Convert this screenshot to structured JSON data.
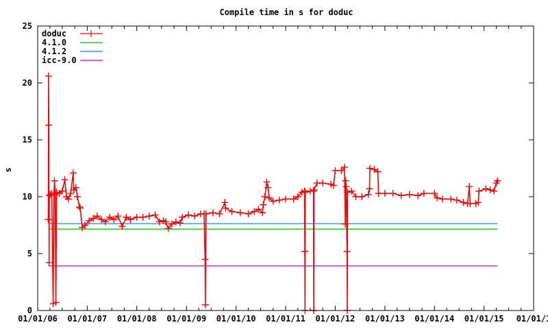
{
  "chart_data": {
    "type": "line",
    "title": "Compile time in s for doduc",
    "xlabel": "",
    "ylabel": "s",
    "xlim": [
      "2006-01-01",
      "2016-01-01"
    ],
    "ylim": [
      0,
      25
    ],
    "x_ticks": [
      "01/01/06",
      "01/01/07",
      "01/01/08",
      "01/01/09",
      "01/01/10",
      "01/01/11",
      "01/01/12",
      "01/01/13",
      "01/01/14",
      "01/01/15",
      "01/01/1"
    ],
    "y_ticks": [
      "0",
      "5",
      "10",
      "15",
      "20",
      "25"
    ],
    "grid": false,
    "legend_placement": "top-left",
    "series": [
      {
        "name": "doduc",
        "color": "#ff0000",
        "style": "linespoints",
        "marker": "plus",
        "points": [
          [
            "2006-03-20",
            8.0
          ],
          [
            "2006-03-22",
            20.6
          ],
          [
            "2006-03-24",
            16.3
          ],
          [
            "2006-03-26",
            4.2
          ],
          [
            "2006-03-28",
            10.1
          ],
          [
            "2006-04-05",
            10.2
          ],
          [
            "2006-04-15",
            10.3
          ],
          [
            "2006-04-25",
            0.6
          ],
          [
            "2006-05-01",
            10.3
          ],
          [
            "2006-05-05",
            11.4
          ],
          [
            "2006-05-10",
            10.2
          ],
          [
            "2006-05-15",
            0.7
          ],
          [
            "2006-05-20",
            10.4
          ],
          [
            "2006-06-10",
            10.3
          ],
          [
            "2006-07-01",
            10.5
          ],
          [
            "2006-07-20",
            11.5
          ],
          [
            "2006-08-01",
            10.0
          ],
          [
            "2006-08-15",
            9.8
          ],
          [
            "2006-09-01",
            10.3
          ],
          [
            "2006-09-20",
            12.1
          ],
          [
            "2006-09-25",
            10.6
          ],
          [
            "2006-10-10",
            10.8
          ],
          [
            "2006-10-20",
            10.0
          ],
          [
            "2006-11-05",
            9.1
          ],
          [
            "2006-11-10",
            9.0
          ],
          [
            "2006-11-25",
            7.3
          ],
          [
            "2006-12-15",
            7.5
          ],
          [
            "2007-01-15",
            7.9
          ],
          [
            "2007-02-15",
            8.1
          ],
          [
            "2007-03-15",
            8.3
          ],
          [
            "2007-04-15",
            8.0
          ],
          [
            "2007-05-15",
            7.8
          ],
          [
            "2007-06-15",
            8.2
          ],
          [
            "2007-07-15",
            8.0
          ],
          [
            "2007-08-15",
            8.3
          ],
          [
            "2007-09-15",
            7.4
          ],
          [
            "2007-10-15",
            8.2
          ],
          [
            "2007-11-15",
            8.0
          ],
          [
            "2008-01-01",
            8.2
          ],
          [
            "2008-02-15",
            8.2
          ],
          [
            "2008-04-01",
            8.3
          ],
          [
            "2008-05-15",
            8.4
          ],
          [
            "2008-06-15",
            7.8
          ],
          [
            "2008-07-15",
            7.9
          ],
          [
            "2008-08-01",
            7.8
          ],
          [
            "2008-08-20",
            7.2
          ],
          [
            "2008-09-15",
            7.6
          ],
          [
            "2008-10-15",
            7.8
          ],
          [
            "2008-11-15",
            7.7
          ],
          [
            "2008-12-01",
            8.2
          ],
          [
            "2009-01-15",
            8.4
          ],
          [
            "2009-03-01",
            8.3
          ],
          [
            "2009-04-15",
            8.5
          ],
          [
            "2009-05-10",
            8.5
          ],
          [
            "2009-05-18",
            4.5
          ],
          [
            "2009-05-20",
            0.5
          ],
          [
            "2009-05-25",
            8.5
          ],
          [
            "2009-07-15",
            8.6
          ],
          [
            "2009-09-01",
            8.5
          ],
          [
            "2009-10-10",
            9.5
          ],
          [
            "2009-10-15",
            9.0
          ],
          [
            "2009-12-01",
            8.7
          ],
          [
            "2010-02-01",
            8.6
          ],
          [
            "2010-04-01",
            8.5
          ],
          [
            "2010-05-15",
            8.7
          ],
          [
            "2010-06-15",
            8.9
          ],
          [
            "2010-07-15",
            8.6
          ],
          [
            "2010-07-20",
            9.3
          ],
          [
            "2010-08-01",
            10.0
          ],
          [
            "2010-08-15",
            11.3
          ],
          [
            "2010-08-25",
            10.8
          ],
          [
            "2010-09-01",
            9.9
          ],
          [
            "2010-10-01",
            9.6
          ],
          [
            "2010-11-15",
            9.7
          ],
          [
            "2011-01-01",
            9.8
          ],
          [
            "2011-03-01",
            9.8
          ],
          [
            "2011-04-01",
            10.0
          ],
          [
            "2011-05-01",
            10.4
          ],
          [
            "2011-05-20",
            10.5
          ],
          [
            "2011-05-22",
            5.2
          ],
          [
            "2011-05-24",
            0.0
          ],
          [
            "2011-05-26",
            10.4
          ],
          [
            "2011-07-01",
            10.5
          ],
          [
            "2011-07-25",
            10.5
          ],
          [
            "2011-07-27",
            0.0
          ],
          [
            "2011-07-29",
            10.6
          ],
          [
            "2011-08-20",
            11.2
          ],
          [
            "2011-10-01",
            11.2
          ],
          [
            "2011-12-01",
            11.1
          ],
          [
            "2011-12-20",
            11.0
          ],
          [
            "2012-01-01",
            12.3
          ],
          [
            "2012-02-15",
            12.3
          ],
          [
            "2012-03-10",
            12.6
          ],
          [
            "2012-03-15",
            7.6
          ],
          [
            "2012-03-18",
            11.4
          ],
          [
            "2012-03-22",
            10.9
          ],
          [
            "2012-03-28",
            5.2
          ],
          [
            "2012-03-30",
            0.0
          ],
          [
            "2012-04-01",
            10.4
          ],
          [
            "2012-05-01",
            10.5
          ],
          [
            "2012-06-01",
            10.0
          ],
          [
            "2012-07-15",
            10.0
          ],
          [
            "2012-09-01",
            10.2
          ],
          [
            "2012-09-10",
            10.7
          ],
          [
            "2012-09-12",
            12.5
          ],
          [
            "2012-10-15",
            12.4
          ],
          [
            "2012-11-10",
            12.2
          ],
          [
            "2012-11-15",
            10.3
          ],
          [
            "2013-01-01",
            10.3
          ],
          [
            "2013-03-01",
            10.3
          ],
          [
            "2013-05-01",
            10.1
          ],
          [
            "2013-07-01",
            10.2
          ],
          [
            "2013-09-01",
            10.1
          ],
          [
            "2013-10-15",
            10.3
          ],
          [
            "2014-01-01",
            10.3
          ],
          [
            "2014-01-20",
            9.9
          ],
          [
            "2014-03-01",
            9.8
          ],
          [
            "2014-05-01",
            9.8
          ],
          [
            "2014-06-15",
            9.7
          ],
          [
            "2014-08-01",
            9.5
          ],
          [
            "2014-09-01",
            9.4
          ],
          [
            "2014-09-15",
            10.9
          ],
          [
            "2014-09-20",
            9.4
          ],
          [
            "2014-11-01",
            9.4
          ],
          [
            "2014-11-20",
            9.5
          ],
          [
            "2014-11-25",
            10.5
          ],
          [
            "2015-01-15",
            10.7
          ],
          [
            "2015-02-15",
            10.6
          ],
          [
            "2015-03-15",
            10.5
          ],
          [
            "2015-04-01",
            11.2
          ],
          [
            "2015-04-10",
            11.4
          ]
        ]
      },
      {
        "name": "4.1.0",
        "color": "#00c000",
        "style": "lines",
        "points": [
          [
            "2006-03-20",
            7.16
          ],
          [
            "2015-04-10",
            7.16
          ]
        ]
      },
      {
        "name": "4.1.2",
        "color": "#0080ff",
        "style": "lines",
        "points": [
          [
            "2006-03-20",
            7.64
          ],
          [
            "2015-04-10",
            7.64
          ]
        ]
      },
      {
        "name": "icc-9.0",
        "color": "#c000ff",
        "style": "lines",
        "points": [
          [
            "2006-03-20",
            3.92
          ],
          [
            "2015-04-10",
            3.92
          ]
        ]
      }
    ]
  }
}
